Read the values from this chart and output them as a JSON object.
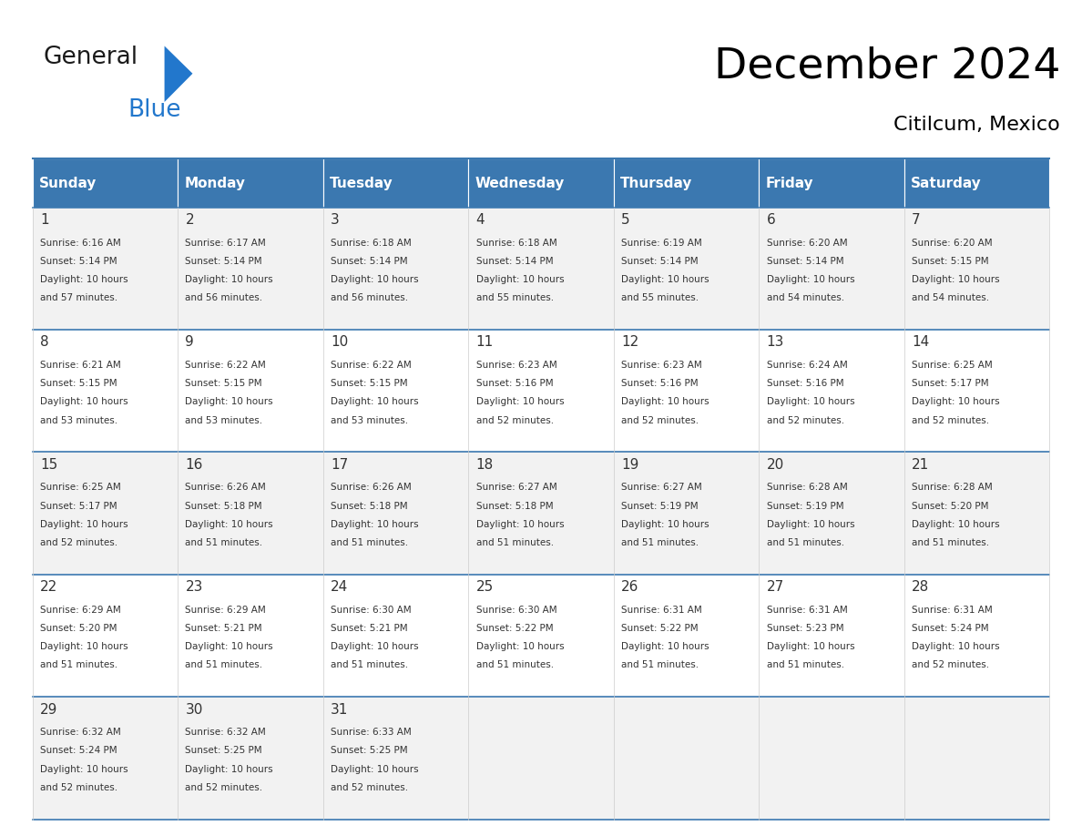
{
  "title": "December 2024",
  "subtitle": "Citilcum, Mexico",
  "header_color": "#3b78b0",
  "header_text_color": "#ffffff",
  "cell_bg_odd": "#f2f2f2",
  "cell_bg_even": "#ffffff",
  "day_names": [
    "Sunday",
    "Monday",
    "Tuesday",
    "Wednesday",
    "Thursday",
    "Friday",
    "Saturday"
  ],
  "days": [
    {
      "day": 1,
      "col": 0,
      "row": 0,
      "sunrise": "6:16 AM",
      "sunset": "5:14 PM",
      "daylight_suffix": "57 minutes."
    },
    {
      "day": 2,
      "col": 1,
      "row": 0,
      "sunrise": "6:17 AM",
      "sunset": "5:14 PM",
      "daylight_suffix": "56 minutes."
    },
    {
      "day": 3,
      "col": 2,
      "row": 0,
      "sunrise": "6:18 AM",
      "sunset": "5:14 PM",
      "daylight_suffix": "56 minutes."
    },
    {
      "day": 4,
      "col": 3,
      "row": 0,
      "sunrise": "6:18 AM",
      "sunset": "5:14 PM",
      "daylight_suffix": "55 minutes."
    },
    {
      "day": 5,
      "col": 4,
      "row": 0,
      "sunrise": "6:19 AM",
      "sunset": "5:14 PM",
      "daylight_suffix": "55 minutes."
    },
    {
      "day": 6,
      "col": 5,
      "row": 0,
      "sunrise": "6:20 AM",
      "sunset": "5:14 PM",
      "daylight_suffix": "54 minutes."
    },
    {
      "day": 7,
      "col": 6,
      "row": 0,
      "sunrise": "6:20 AM",
      "sunset": "5:15 PM",
      "daylight_suffix": "54 minutes."
    },
    {
      "day": 8,
      "col": 0,
      "row": 1,
      "sunrise": "6:21 AM",
      "sunset": "5:15 PM",
      "daylight_suffix": "53 minutes."
    },
    {
      "day": 9,
      "col": 1,
      "row": 1,
      "sunrise": "6:22 AM",
      "sunset": "5:15 PM",
      "daylight_suffix": "53 minutes."
    },
    {
      "day": 10,
      "col": 2,
      "row": 1,
      "sunrise": "6:22 AM",
      "sunset": "5:15 PM",
      "daylight_suffix": "53 minutes."
    },
    {
      "day": 11,
      "col": 3,
      "row": 1,
      "sunrise": "6:23 AM",
      "sunset": "5:16 PM",
      "daylight_suffix": "52 minutes."
    },
    {
      "day": 12,
      "col": 4,
      "row": 1,
      "sunrise": "6:23 AM",
      "sunset": "5:16 PM",
      "daylight_suffix": "52 minutes."
    },
    {
      "day": 13,
      "col": 5,
      "row": 1,
      "sunrise": "6:24 AM",
      "sunset": "5:16 PM",
      "daylight_suffix": "52 minutes."
    },
    {
      "day": 14,
      "col": 6,
      "row": 1,
      "sunrise": "6:25 AM",
      "sunset": "5:17 PM",
      "daylight_suffix": "52 minutes."
    },
    {
      "day": 15,
      "col": 0,
      "row": 2,
      "sunrise": "6:25 AM",
      "sunset": "5:17 PM",
      "daylight_suffix": "52 minutes."
    },
    {
      "day": 16,
      "col": 1,
      "row": 2,
      "sunrise": "6:26 AM",
      "sunset": "5:18 PM",
      "daylight_suffix": "51 minutes."
    },
    {
      "day": 17,
      "col": 2,
      "row": 2,
      "sunrise": "6:26 AM",
      "sunset": "5:18 PM",
      "daylight_suffix": "51 minutes."
    },
    {
      "day": 18,
      "col": 3,
      "row": 2,
      "sunrise": "6:27 AM",
      "sunset": "5:18 PM",
      "daylight_suffix": "51 minutes."
    },
    {
      "day": 19,
      "col": 4,
      "row": 2,
      "sunrise": "6:27 AM",
      "sunset": "5:19 PM",
      "daylight_suffix": "51 minutes."
    },
    {
      "day": 20,
      "col": 5,
      "row": 2,
      "sunrise": "6:28 AM",
      "sunset": "5:19 PM",
      "daylight_suffix": "51 minutes."
    },
    {
      "day": 21,
      "col": 6,
      "row": 2,
      "sunrise": "6:28 AM",
      "sunset": "5:20 PM",
      "daylight_suffix": "51 minutes."
    },
    {
      "day": 22,
      "col": 0,
      "row": 3,
      "sunrise": "6:29 AM",
      "sunset": "5:20 PM",
      "daylight_suffix": "51 minutes."
    },
    {
      "day": 23,
      "col": 1,
      "row": 3,
      "sunrise": "6:29 AM",
      "sunset": "5:21 PM",
      "daylight_suffix": "51 minutes."
    },
    {
      "day": 24,
      "col": 2,
      "row": 3,
      "sunrise": "6:30 AM",
      "sunset": "5:21 PM",
      "daylight_suffix": "51 minutes."
    },
    {
      "day": 25,
      "col": 3,
      "row": 3,
      "sunrise": "6:30 AM",
      "sunset": "5:22 PM",
      "daylight_suffix": "51 minutes."
    },
    {
      "day": 26,
      "col": 4,
      "row": 3,
      "sunrise": "6:31 AM",
      "sunset": "5:22 PM",
      "daylight_suffix": "51 minutes."
    },
    {
      "day": 27,
      "col": 5,
      "row": 3,
      "sunrise": "6:31 AM",
      "sunset": "5:23 PM",
      "daylight_suffix": "51 minutes."
    },
    {
      "day": 28,
      "col": 6,
      "row": 3,
      "sunrise": "6:31 AM",
      "sunset": "5:24 PM",
      "daylight_suffix": "52 minutes."
    },
    {
      "day": 29,
      "col": 0,
      "row": 4,
      "sunrise": "6:32 AM",
      "sunset": "5:24 PM",
      "daylight_suffix": "52 minutes."
    },
    {
      "day": 30,
      "col": 1,
      "row": 4,
      "sunrise": "6:32 AM",
      "sunset": "5:25 PM",
      "daylight_suffix": "52 minutes."
    },
    {
      "day": 31,
      "col": 2,
      "row": 4,
      "sunrise": "6:33 AM",
      "sunset": "5:25 PM",
      "daylight_suffix": "52 minutes."
    }
  ],
  "num_rows": 5,
  "num_cols": 7,
  "logo_general_color": "#1a1a1a",
  "logo_blue_color": "#2277cc",
  "logo_triangle_color": "#2277cc",
  "border_line_color": "#3b78b0",
  "cell_line_color": "#cccccc"
}
